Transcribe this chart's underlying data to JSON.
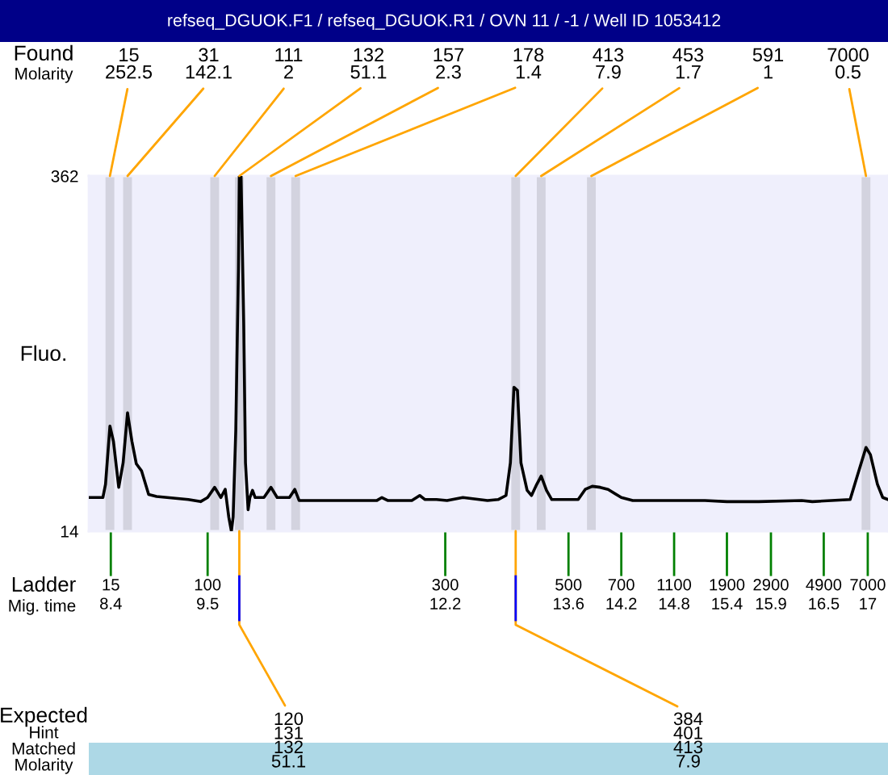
{
  "chart_data": {
    "type": "line",
    "title": "refseq_DGUOK.F1 / refseq_DGUOK.R1 / OVN 11 / -1 / Well ID 1053412",
    "xlabel": "Mig. time",
    "ylabel": "Fluo.",
    "x": [
      8.15,
      8.31,
      8.34,
      8.39,
      8.43,
      8.49,
      8.54,
      8.59,
      8.64,
      8.69,
      8.75,
      8.83,
      8.92,
      9.28,
      9.42,
      9.5,
      9.58,
      9.65,
      9.7,
      9.74,
      9.77,
      9.79,
      9.82,
      9.85,
      9.86,
      9.88,
      9.91,
      9.93,
      9.96,
      9.98,
      10.01,
      10.04,
      10.14,
      10.22,
      10.29,
      10.43,
      10.49,
      10.54,
      10.81,
      11.42,
      11.48,
      11.55,
      11.82,
      11.91,
      11.97,
      12.1,
      12.22,
      12.4,
      12.68,
      12.8,
      12.89,
      12.94,
      12.98,
      13.02,
      13.06,
      13.13,
      13.18,
      13.24,
      13.29,
      13.35,
      13.41,
      13.71,
      13.79,
      13.87,
      13.96,
      14.05,
      14.2,
      14.33,
      14.72,
      15.15,
      15.4,
      15.76,
      16.25,
      16.37,
      16.8,
      16.87,
      16.98,
      17.03,
      17.11,
      17.17,
      17.23
    ],
    "series": [
      {
        "color": "#000000",
        "values": [
          47,
          47,
          60,
          117,
          102,
          57,
          81,
          130,
          102,
          80,
          73,
          50,
          48,
          45,
          43,
          47,
          57,
          47,
          55,
          28,
          14,
          28,
          113,
          271,
          362,
          362,
          218,
          81,
          35,
          47,
          54,
          47,
          47,
          57,
          47,
          47,
          55,
          44,
          44,
          44,
          47,
          44,
          44,
          49,
          45,
          45,
          44,
          47,
          44,
          45,
          49,
          81,
          155,
          152,
          81,
          54,
          49,
          60,
          68,
          54,
          45,
          45,
          55,
          58,
          57,
          55,
          47,
          44,
          44,
          44,
          43,
          43,
          44,
          43,
          45,
          65,
          96,
          89,
          60,
          47,
          45
        ]
      }
    ],
    "xlim": [
      8.15,
      17.23
    ],
    "ylim": [
      14,
      362
    ],
    "yticks": [
      14,
      362
    ],
    "xticks": [
      8.4,
      9.5,
      12.2,
      13.6,
      14.2,
      14.8,
      15.4,
      15.9,
      16.5,
      17
    ],
    "bands": [
      {
        "axis": "x",
        "from": 8.34,
        "to": 8.44,
        "color": "#d3d3df"
      },
      {
        "axis": "x",
        "from": 8.54,
        "to": 8.64,
        "color": "#d3d3df"
      },
      {
        "axis": "x",
        "from": 9.53,
        "to": 9.63,
        "color": "#d3d3df"
      },
      {
        "axis": "x",
        "from": 9.81,
        "to": 9.91,
        "color": "#d3d3df"
      },
      {
        "axis": "x",
        "from": 10.17,
        "to": 10.27,
        "color": "#d3d3df"
      },
      {
        "axis": "x",
        "from": 10.45,
        "to": 10.55,
        "color": "#d3d3df"
      },
      {
        "axis": "x",
        "from": 12.95,
        "to": 13.05,
        "color": "#d3d3df"
      },
      {
        "axis": "x",
        "from": 13.24,
        "to": 13.34,
        "color": "#d3d3df"
      },
      {
        "axis": "x",
        "from": 13.81,
        "to": 13.91,
        "color": "#d3d3df"
      },
      {
        "axis": "x",
        "from": 16.93,
        "to": 17.03,
        "color": "#d3d3df"
      }
    ],
    "annotations": [
      "Found",
      "Molarity",
      "Ladder",
      "15",
      "100",
      "300",
      "500",
      "700",
      "1100",
      "1900",
      "2900",
      "4900",
      "7000",
      "Expected",
      "Hint",
      "Matched",
      "Molarity",
      {
        "text": "15\n252.5",
        "x": 8.39,
        "y": 362
      },
      {
        "text": "31\n142.1",
        "x": 8.59,
        "y": 362
      },
      {
        "text": "111\n2",
        "x": 9.58,
        "y": 362
      },
      {
        "text": "132\n51.1",
        "x": 9.86,
        "y": 362
      },
      {
        "text": "157\n2.3",
        "x": 10.22,
        "y": 362
      },
      {
        "text": "178\n1.4",
        "x": 10.5,
        "y": 362
      },
      {
        "text": "413\n7.9",
        "x": 13.0,
        "y": 362
      },
      {
        "text": "453\n1.7",
        "x": 13.29,
        "y": 362
      },
      {
        "text": "591\n1",
        "x": 13.86,
        "y": 362
      },
      {
        "text": "7000\n0.5",
        "x": 16.98,
        "y": 362
      },
      {
        "text": "120\n131\n132\n51.1",
        "x": 9.86,
        "y": 14
      },
      {
        "text": "384\n401\n413\n7.9",
        "x": 13.0,
        "y": 14
      }
    ]
  }
}
